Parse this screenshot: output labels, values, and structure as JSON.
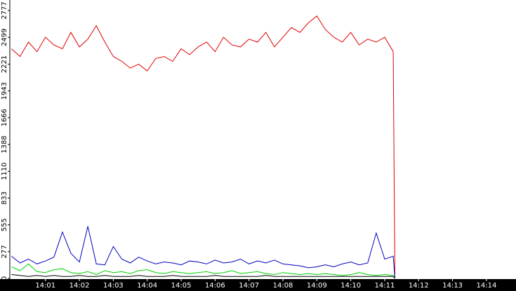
{
  "chart_data": {
    "type": "line",
    "x": [
      0,
      0.25,
      0.5,
      0.75,
      1,
      1.25,
      1.5,
      1.75,
      2,
      2.25,
      2.5,
      2.75,
      3,
      3.25,
      3.5,
      3.75,
      4,
      4.25,
      4.5,
      4.75,
      5,
      5.25,
      5.5,
      5.75,
      6,
      6.25,
      6.5,
      6.75,
      7,
      7.25,
      7.5,
      7.75,
      8,
      8.25,
      8.5,
      8.75,
      9,
      9.25,
      9.5,
      9.75,
      10,
      10.25,
      10.5,
      10.75,
      11,
      11.25,
      11.3
    ],
    "series": [
      {
        "color": "#e00000",
        "values": [
          2380,
          2300,
          2450,
          2350,
          2500,
          2420,
          2380,
          2550,
          2400,
          2480,
          2620,
          2450,
          2300,
          2250,
          2180,
          2220,
          2150,
          2280,
          2300,
          2250,
          2380,
          2320,
          2400,
          2450,
          2350,
          2500,
          2420,
          2400,
          2480,
          2450,
          2550,
          2400,
          2500,
          2600,
          2550,
          2650,
          2720,
          2580,
          2500,
          2450,
          2550,
          2420,
          2480,
          2450,
          2500,
          2350,
          0
        ]
      },
      {
        "color": "#0000c0",
        "values": [
          230,
          160,
          200,
          150,
          180,
          220,
          480,
          260,
          170,
          540,
          150,
          140,
          330,
          200,
          160,
          220,
          180,
          150,
          170,
          160,
          140,
          180,
          170,
          150,
          190,
          160,
          170,
          200,
          150,
          180,
          160,
          190,
          150,
          140,
          130,
          110,
          120,
          140,
          120,
          150,
          170,
          140,
          160,
          470,
          200,
          230,
          0
        ]
      },
      {
        "color": "#00d000",
        "values": [
          120,
          80,
          150,
          70,
          60,
          90,
          100,
          60,
          50,
          70,
          40,
          80,
          60,
          70,
          50,
          80,
          90,
          60,
          50,
          70,
          60,
          50,
          60,
          70,
          50,
          60,
          80,
          50,
          60,
          70,
          50,
          40,
          60,
          50,
          40,
          50,
          40,
          50,
          40,
          30,
          40,
          60,
          40,
          30,
          40,
          30,
          0
        ]
      },
      {
        "color": "#000000",
        "values": [
          40,
          30,
          20,
          30,
          20,
          30,
          20,
          20,
          30,
          20,
          20,
          30,
          20,
          20,
          20,
          30,
          20,
          20,
          20,
          30,
          20,
          20,
          20,
          20,
          30,
          20,
          20,
          20,
          20,
          20,
          30,
          20,
          20,
          20,
          20,
          20,
          20,
          20,
          20,
          20,
          20,
          20,
          20,
          20,
          20,
          20,
          0
        ]
      }
    ],
    "xlim": [
      -0.05,
      14.87
    ],
    "xticks": [
      {
        "value": 1,
        "label": "14:01"
      },
      {
        "value": 2,
        "label": "14:02"
      },
      {
        "value": 3,
        "label": "14:03"
      },
      {
        "value": 4,
        "label": "14:04"
      },
      {
        "value": 5,
        "label": "14:05"
      },
      {
        "value": 6,
        "label": "14:06"
      },
      {
        "value": 7,
        "label": "14:07"
      },
      {
        "value": 8,
        "label": "14:08"
      },
      {
        "value": 9,
        "label": "14:09"
      },
      {
        "value": 10,
        "label": "14:10"
      },
      {
        "value": 11,
        "label": "14:11"
      },
      {
        "value": 12,
        "label": "14:12"
      },
      {
        "value": 13,
        "label": "14:13"
      },
      {
        "value": 14,
        "label": "14:14"
      }
    ],
    "ylim": [
      0,
      2886
    ],
    "yticks": [
      0,
      277,
      555,
      833,
      1110,
      1388,
      1666,
      1943,
      2221,
      2499,
      2777
    ]
  }
}
